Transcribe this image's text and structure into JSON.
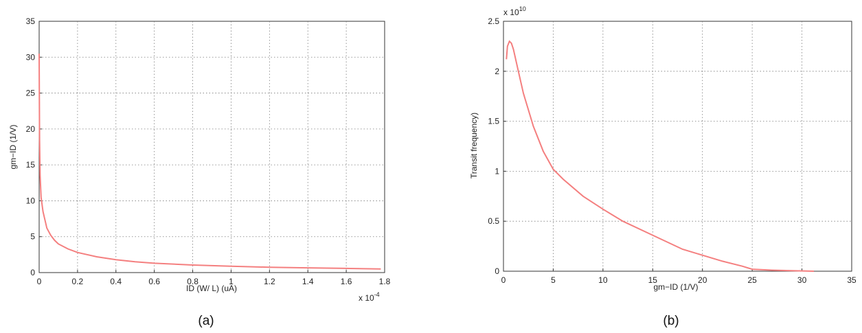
{
  "figure": {
    "captions": [
      "(a)",
      "(b)"
    ]
  },
  "chart_data": [
    {
      "type": "line",
      "ylabel": "gm−ID (1/V)",
      "xlabel": "ID (W/ L) (uA)",
      "x_multiplier": "x 10",
      "x_multiplier_exp": "-4",
      "xlim": [
        0,
        1.8
      ],
      "ylim": [
        0,
        35
      ],
      "xticks": [
        0,
        0.2,
        0.4,
        0.6,
        0.8,
        1,
        1.2,
        1.4,
        1.6,
        1.8
      ],
      "xtick_labels": [
        "0",
        "0.2",
        "0.4",
        "0.6",
        "0.8",
        "1",
        "1.2",
        "1.4",
        "1.6",
        "1.8"
      ],
      "yticks": [
        0,
        5,
        10,
        15,
        20,
        25,
        30,
        35
      ],
      "ytick_labels": [
        "0",
        "5",
        "10",
        "15",
        "20",
        "25",
        "30",
        "35"
      ],
      "grid": true,
      "line_color": "#f47f7f",
      "series": [
        {
          "x": [
            0,
            0.002,
            0.005,
            0.01,
            0.02,
            0.04,
            0.06,
            0.08,
            0.1,
            0.15,
            0.2,
            0.3,
            0.4,
            0.5,
            0.6,
            0.8,
            1.0,
            1.2,
            1.4,
            1.6,
            1.78
          ],
          "y": [
            30.5,
            18.5,
            13.5,
            10.5,
            8.5,
            6.2,
            5.2,
            4.5,
            4.0,
            3.3,
            2.8,
            2.2,
            1.8,
            1.5,
            1.3,
            1.05,
            0.88,
            0.75,
            0.66,
            0.58,
            0.5
          ]
        }
      ]
    },
    {
      "type": "line",
      "ylabel": "Transit frequency)",
      "xlabel": "gm−ID (1/V)",
      "y_multiplier": "x 10",
      "y_multiplier_exp": "10",
      "xlim": [
        0,
        35
      ],
      "ylim": [
        0,
        2.5
      ],
      "xticks": [
        0,
        5,
        10,
        15,
        20,
        25,
        30,
        35
      ],
      "xtick_labels": [
        "0",
        "5",
        "10",
        "15",
        "20",
        "25",
        "30",
        "35"
      ],
      "yticks": [
        0,
        0.5,
        1,
        1.5,
        2,
        2.5
      ],
      "ytick_labels": [
        "0",
        "0.5",
        "1",
        "1.5",
        "2",
        "2.5"
      ],
      "grid": true,
      "line_color": "#f47f7f",
      "series": [
        {
          "x": [
            0.3,
            0.4,
            0.6,
            0.8,
            1.0,
            1.5,
            2,
            3,
            4,
            5,
            6,
            8,
            10,
            12,
            15,
            18,
            20,
            22,
            24,
            25,
            27,
            29,
            31.2
          ],
          "y": [
            2.12,
            2.25,
            2.3,
            2.28,
            2.22,
            2.0,
            1.78,
            1.45,
            1.2,
            1.02,
            0.92,
            0.75,
            0.62,
            0.5,
            0.36,
            0.22,
            0.16,
            0.1,
            0.05,
            0.02,
            0.01,
            0.005,
            0.0
          ]
        }
      ]
    }
  ]
}
